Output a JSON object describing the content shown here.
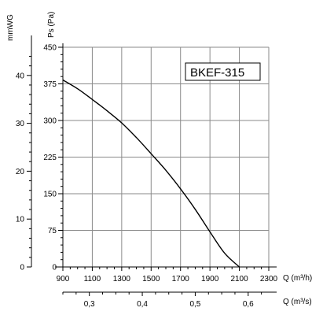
{
  "chart_data": {
    "type": "line",
    "series": [
      {
        "x": [
          900,
          1000,
          1100,
          1200,
          1300,
          1400,
          1500,
          1600,
          1700,
          1800,
          1900,
          2000,
          2100
        ],
        "y": [
          383,
          365,
          343,
          320,
          295,
          265,
          232,
          198,
          160,
          118,
          72,
          28,
          0
        ]
      }
    ],
    "xlim": [
      900,
      2300
    ],
    "ylim": [
      0,
      450
    ],
    "grid": true,
    "x_ticks": [
      "900",
      "1100",
      "1300",
      "1500",
      "1700",
      "1900",
      "2100",
      "2300"
    ],
    "xlabel": "Q (m³/h)",
    "y_ticks": [
      "0",
      "75",
      "150",
      "225",
      "300",
      "375",
      "450"
    ],
    "ylabel": "Ps (Pa)",
    "secondary_y": {
      "label": "mmWG",
      "ticks": [
        "0",
        "10",
        "20",
        "30",
        "40"
      ]
    },
    "secondary_x": {
      "label": "Q (m³/s)",
      "ticks": [
        "0,3",
        "0,4",
        "0,5",
        "0,6"
      ]
    },
    "annotation": "BKEF-315"
  }
}
